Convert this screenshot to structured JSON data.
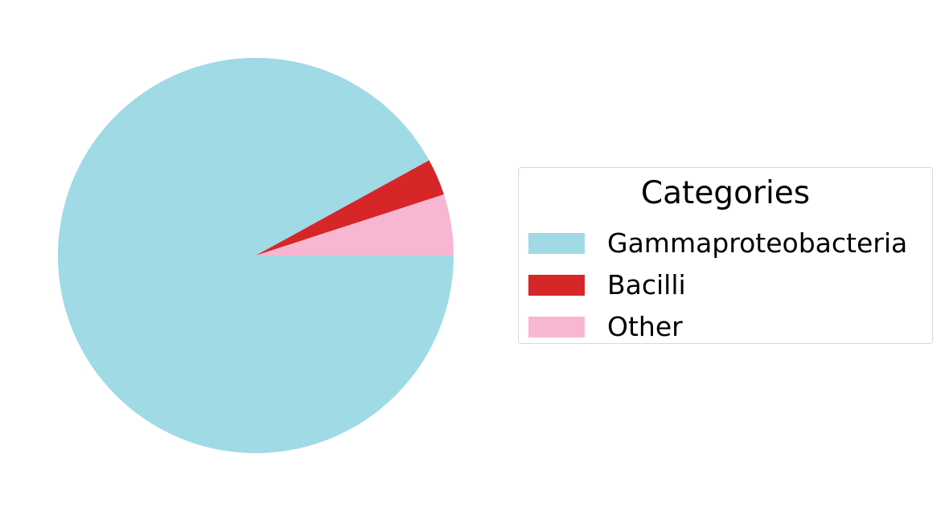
{
  "chart_data": {
    "type": "pie",
    "title": "",
    "categories": [
      "Gammaproteobacteria",
      "Bacilli",
      "Other"
    ],
    "values": [
      92,
      3,
      5
    ],
    "colors": [
      "#9fdae5",
      "#d62628",
      "#f7b6d2"
    ],
    "start_angle_deg": 0,
    "direction": "clockwise",
    "legend": {
      "title": "Categories",
      "placement": "right"
    }
  }
}
